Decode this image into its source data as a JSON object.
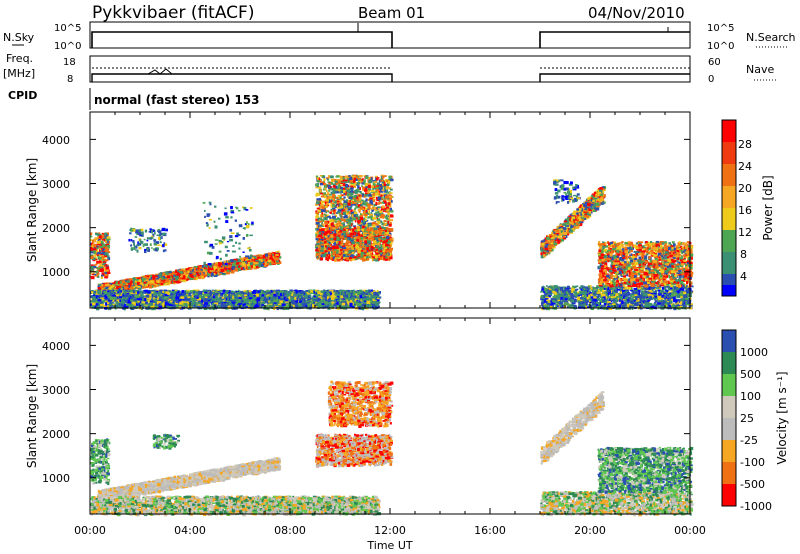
{
  "header": {
    "station": "Pykkvibaer (fitACF)",
    "beam": "Beam 01",
    "date": "04/Nov/2010"
  },
  "noise_panel": {
    "left_label": "N.Sky",
    "left_ticks": [
      "10^5",
      "10^0"
    ],
    "right_label": "N.Search",
    "right_ticks": [
      "10^5",
      "10^0"
    ]
  },
  "freq_panel": {
    "left_label": "Freq.",
    "left_unit": "[MHz]",
    "left_ticks": [
      "18",
      "8"
    ],
    "right_label": "Nave",
    "right_ticks": [
      "60",
      "0"
    ]
  },
  "cpid": {
    "label": "CPID",
    "value": "normal (fast stereo) 153"
  },
  "time_axis": {
    "label": "Time UT",
    "ticks": [
      "00:00",
      "04:00",
      "08:00",
      "12:00",
      "16:00",
      "20:00",
      "00:00"
    ]
  },
  "power_panel": {
    "ylabel": "Slant Range [km]",
    "yticks": [
      "1000",
      "2000",
      "3000",
      "4000"
    ],
    "colorbar_label": "Power [dB]",
    "colorbar_ticks": [
      "4",
      "8",
      "12",
      "16",
      "20",
      "24",
      "28"
    ]
  },
  "velocity_panel": {
    "ylabel": "Slant Range [km]",
    "yticks": [
      "1000",
      "2000",
      "3000",
      "4000"
    ],
    "colorbar_label": "Velocity [m s⁻¹]",
    "colorbar_ticks": [
      "1000",
      "500",
      "100",
      "25",
      "-25",
      "-100",
      "-500",
      "-1000"
    ]
  },
  "chart_data": [
    {
      "type": "heatmap",
      "title": "",
      "xlabel": "Time UT",
      "ylabel": "Slant Range [km]",
      "x_range_hours": [
        0,
        24
      ],
      "ylim": [
        180,
        4620
      ],
      "colorscale": [
        "#0000ff",
        "#2a4fb0",
        "#3b8f73",
        "#4ea654",
        "#eecb1a",
        "#f5a623",
        "#f07014",
        "#ff0000"
      ],
      "data_gaps_hours": [
        [
          12,
          18
        ]
      ],
      "echo_regions": [
        {
          "t": [
            0.0,
            0.7
          ],
          "range": [
            800,
            2000
          ],
          "level": "strong"
        },
        {
          "t": [
            0.3,
            7.5
          ],
          "range": [
            500,
            1400
          ],
          "level": "strong"
        },
        {
          "t": [
            9.0,
            12.0
          ],
          "range": [
            1300,
            3200
          ],
          "level": "strong"
        },
        {
          "t": [
            18.0,
            20.5
          ],
          "range": [
            1200,
            3000
          ],
          "level": "moderate"
        },
        {
          "t": [
            20.5,
            24.0
          ],
          "range": [
            500,
            1800
          ],
          "level": "strong"
        }
      ]
    },
    {
      "type": "heatmap",
      "title": "",
      "xlabel": "Time UT",
      "ylabel": "Slant Range [km]",
      "x_range_hours": [
        0,
        24
      ],
      "ylim": [
        180,
        4620
      ],
      "colorscale": [
        "#ff0000",
        "#f07014",
        "#f5a623",
        "#cfc9bc",
        "#bcbcbc",
        "#60c850",
        "#2e8a55",
        "#2a4fb0"
      ],
      "data_gaps_hours": [
        [
          12,
          18
        ]
      ]
    }
  ]
}
